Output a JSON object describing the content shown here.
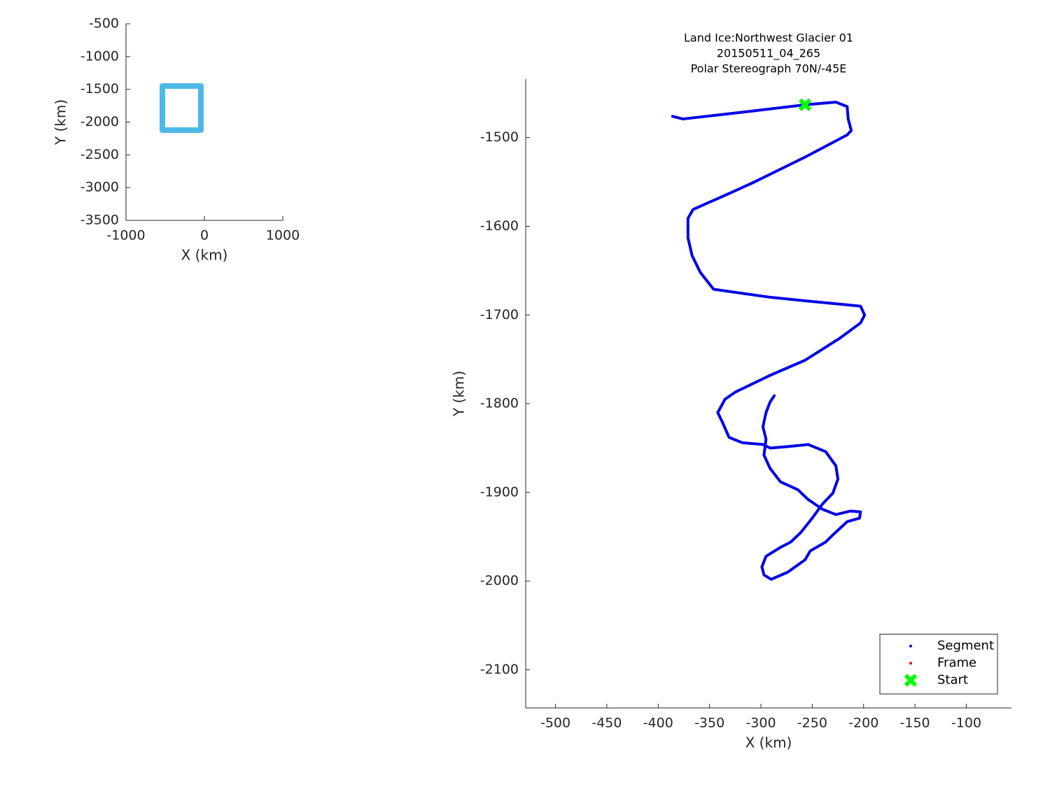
{
  "chart_data": [
    {
      "type": "line",
      "xlabel": "X (km)",
      "ylabel": "Y (km)",
      "xlim": [
        -1000,
        1000
      ],
      "xticks": [
        -1000,
        0,
        1000
      ],
      "ylim": [
        -3500,
        -500
      ],
      "yticks": [
        -3500,
        -3000,
        -2500,
        -2000,
        -1500,
        -1000,
        -500
      ],
      "series": [
        {
          "color": "#4db8e8",
          "style": "line",
          "x": [
            -536,
            -45,
            -45,
            -536,
            -536
          ],
          "y": [
            -1450,
            -1450,
            -2123,
            -2123,
            -1450
          ]
        }
      ]
    },
    {
      "type": "line",
      "title": [
        "Land Ice:Northwest Glacier 01",
        "20150511_04_265",
        "Polar Stereograph 70N/-45E"
      ],
      "xlabel": "X (km)",
      "ylabel": "Y (km)",
      "xlim": [
        -529,
        -56
      ],
      "xticks": [
        -500,
        -450,
        -400,
        -350,
        -300,
        -250,
        -200,
        -150,
        -100
      ],
      "ylim": [
        -2143,
        -1434
      ],
      "yticks": [
        -2100,
        -2000,
        -1900,
        -1800,
        -1700,
        -1600,
        -1500
      ],
      "legend": "southeast",
      "series": [
        {
          "name": "Segment",
          "color": "#0000e6",
          "style": "line",
          "x": [
            -386,
            -376,
            -315,
            -257,
            -227,
            -216,
            -215,
            -212,
            -216,
            -257,
            -308,
            -329,
            -366,
            -371,
            -371,
            -367,
            -359,
            -346,
            -291,
            -257,
            -203,
            -199,
            -203,
            -223,
            -257,
            -291,
            -325,
            -335,
            -342,
            -337,
            -331,
            -318,
            -298,
            -291,
            -271,
            -254,
            -237,
            -227,
            -225,
            -230,
            -240,
            -250,
            -261,
            -271,
            -281,
            -295,
            -299,
            -297,
            -290,
            -274,
            -257,
            -252,
            -237,
            -230,
            -216,
            -204,
            -203,
            -213,
            -227,
            -240,
            -254,
            -264,
            -281,
            -291,
            -297,
            -295,
            -298,
            -295,
            -291,
            -287
          ],
          "y": [
            -1476,
            -1479,
            -1471,
            -1463,
            -1460,
            -1465,
            -1479,
            -1492,
            -1497,
            -1522,
            -1551,
            -1562,
            -1581,
            -1591,
            -1613,
            -1633,
            -1652,
            -1671,
            -1680,
            -1684,
            -1690,
            -1700,
            -1709,
            -1726,
            -1751,
            -1768,
            -1787,
            -1795,
            -1810,
            -1822,
            -1838,
            -1844,
            -1846,
            -1850,
            -1848,
            -1846,
            -1854,
            -1870,
            -1885,
            -1901,
            -1913,
            -1929,
            -1945,
            -1956,
            -1962,
            -1972,
            -1984,
            -1993,
            -1998,
            -1990,
            -1976,
            -1966,
            -1956,
            -1948,
            -1933,
            -1929,
            -1922,
            -1921,
            -1925,
            -1919,
            -1908,
            -1897,
            -1888,
            -1873,
            -1858,
            -1840,
            -1826,
            -1810,
            -1798,
            -1791
          ]
        },
        {
          "name": "Frame",
          "color": "#ff0000",
          "style": "dot",
          "x": [],
          "y": []
        },
        {
          "name": "Start",
          "color": "#00ff00",
          "style": "marker",
          "x": [
            -257
          ],
          "y": [
            -1463
          ]
        }
      ]
    }
  ]
}
